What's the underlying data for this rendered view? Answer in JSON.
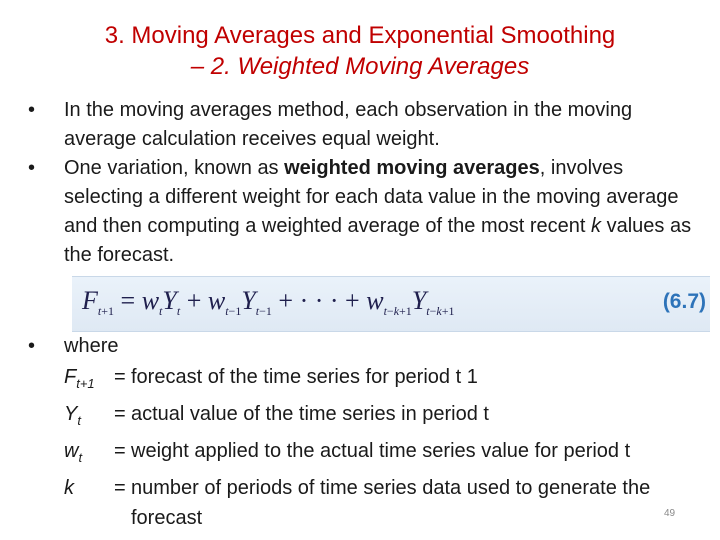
{
  "title": {
    "line1": "3. Moving Averages and Exponential Smoothing",
    "line2": "– 2. Weighted Moving Averages"
  },
  "bullets": {
    "b1": "In the moving averages method, each observation in the moving average calculation receives equal weight.",
    "b2_pre": "One variation, known as ",
    "b2_bold": "weighted moving averages",
    "b2_mid": ", involves selecting a different weight for each data value in the moving average and then computing a weighted average of the most recent ",
    "b2_k": "k",
    "b2_post": " values as the forecast."
  },
  "formula": {
    "number": "(6.7)"
  },
  "where": {
    "label": "where",
    "rows": [
      {
        "symbol": "F",
        "sub": "t+1",
        "eq": "=",
        "desc": "forecast of the time series for period t  1"
      },
      {
        "symbol": "Y",
        "sub": "t",
        "eq": "=",
        "desc": "actual value of the time series in period t"
      },
      {
        "symbol": "w",
        "sub": "t",
        "eq": "=",
        "desc": "weight applied to the actual time series value for period t"
      },
      {
        "symbol": "k",
        "sub": "",
        "eq": "=",
        "desc": "number of periods of time series data used to generate the forecast"
      }
    ]
  },
  "page_number": "49"
}
